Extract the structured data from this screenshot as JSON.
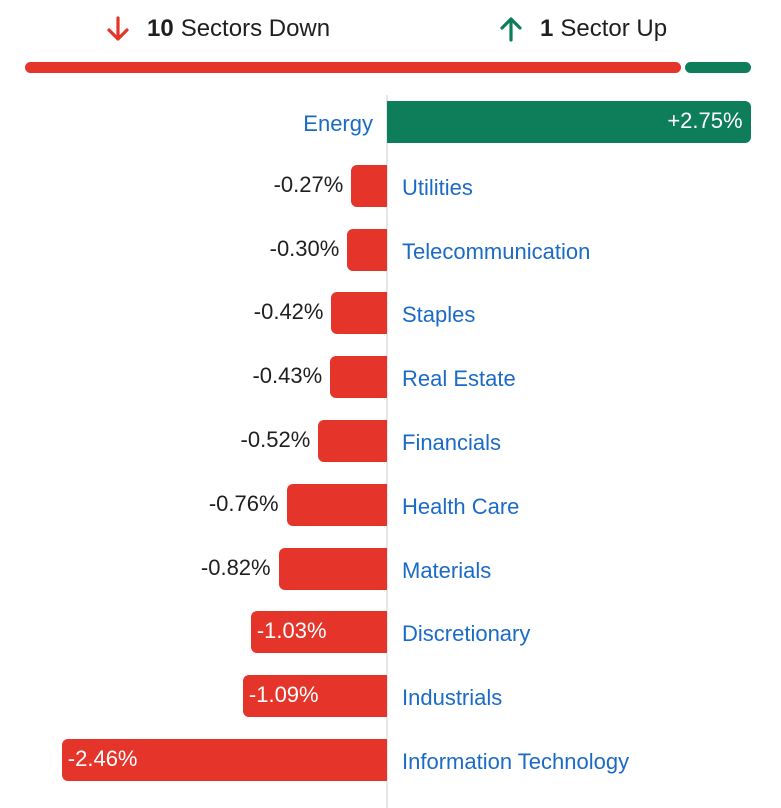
{
  "summary": {
    "down": {
      "count": "10",
      "label": "Sectors Down",
      "icon": "arrow-down-icon",
      "color": "#e5352b"
    },
    "up": {
      "count": "1",
      "label": "Sector Up",
      "icon": "arrow-up-icon",
      "color": "#0e7d5a"
    },
    "down_sectors": 10,
    "up_sectors": 1
  },
  "colors": {
    "negative": "#e5352b",
    "positive": "#0e7d5a",
    "category_text": "#1b6bc6",
    "value_text": "#1f1f1f"
  },
  "chart_data": {
    "type": "bar",
    "orientation": "horizontal",
    "categories": [
      "Energy",
      "Utilities",
      "Telecommunication",
      "Staples",
      "Real Estate",
      "Financials",
      "Health Care",
      "Materials",
      "Discretionary",
      "Industrials",
      "Information Technology"
    ],
    "values": [
      2.75,
      -0.27,
      -0.3,
      -0.42,
      -0.43,
      -0.52,
      -0.76,
      -0.82,
      -1.03,
      -1.09,
      -2.46
    ],
    "value_labels": [
      "+2.75%",
      "-0.27%",
      "-0.30%",
      "-0.42%",
      "-0.43%",
      "-0.52%",
      "-0.76%",
      "-0.82%",
      "-1.03%",
      "-1.09%",
      "-2.46%"
    ],
    "unit": "%"
  }
}
